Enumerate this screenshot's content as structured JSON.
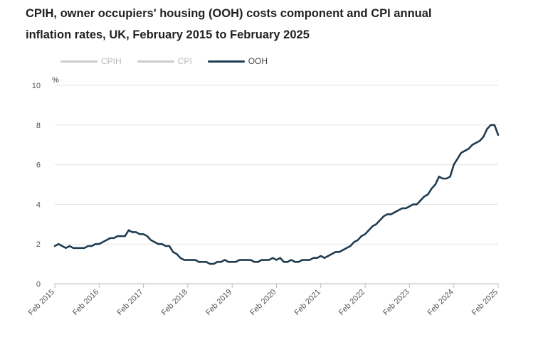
{
  "header": {
    "title_line1": "CPIH, owner occupiers' housing (OOH) costs component and CPI annual",
    "title_line2": "inflation rates, UK, February 2015 to February 2025"
  },
  "legend": [
    {
      "label": "CPIH",
      "color": "#cccccc",
      "active": false
    },
    {
      "label": "CPI",
      "color": "#cccccc",
      "active": false
    },
    {
      "label": "OOH",
      "color": "#1f3c50",
      "active": true
    }
  ],
  "chart_data": {
    "type": "line",
    "title": "CPIH, owner occupiers' housing (OOH) costs component and CPI annual inflation rates, UK, February 2015 to February 2025",
    "ylabel": "%",
    "xlabel": "",
    "ylim": [
      0,
      10
    ],
    "yticks": [
      0,
      2,
      4,
      6,
      8,
      10
    ],
    "grid": true,
    "legend_position": "top-left",
    "xtick_labels": [
      "Feb 2015",
      "Feb 2016",
      "Feb 2017",
      "Feb 2018",
      "Feb 2019",
      "Feb 2020",
      "Feb 2021",
      "Feb 2022",
      "Feb 2023",
      "Feb 2024",
      "Feb 2025"
    ],
    "xtick_month_index": [
      0,
      12,
      24,
      36,
      48,
      60,
      72,
      84,
      96,
      108,
      120
    ],
    "series": [
      {
        "name": "OOH",
        "color": "#1f3c50",
        "start": "Feb 2015",
        "frequency": "monthly",
        "values": [
          1.9,
          2.0,
          1.9,
          1.8,
          1.9,
          1.8,
          1.8,
          1.8,
          1.8,
          1.9,
          1.9,
          2.0,
          2.0,
          2.1,
          2.2,
          2.3,
          2.3,
          2.4,
          2.4,
          2.4,
          2.7,
          2.6,
          2.6,
          2.5,
          2.5,
          2.4,
          2.2,
          2.1,
          2.0,
          2.0,
          1.9,
          1.9,
          1.6,
          1.5,
          1.3,
          1.2,
          1.2,
          1.2,
          1.2,
          1.1,
          1.1,
          1.1,
          1.0,
          1.0,
          1.1,
          1.1,
          1.2,
          1.1,
          1.1,
          1.1,
          1.2,
          1.2,
          1.2,
          1.2,
          1.1,
          1.1,
          1.2,
          1.2,
          1.2,
          1.3,
          1.2,
          1.3,
          1.1,
          1.1,
          1.2,
          1.1,
          1.1,
          1.2,
          1.2,
          1.2,
          1.3,
          1.3,
          1.4,
          1.3,
          1.4,
          1.5,
          1.6,
          1.6,
          1.7,
          1.8,
          1.9,
          2.1,
          2.2,
          2.4,
          2.5,
          2.7,
          2.9,
          3.0,
          3.2,
          3.4,
          3.5,
          3.5,
          3.6,
          3.7,
          3.8,
          3.8,
          3.9,
          4.0,
          4.0,
          4.2,
          4.4,
          4.5,
          4.8,
          5.0,
          5.4,
          5.3,
          5.3,
          5.4,
          6.0,
          6.3,
          6.6,
          6.7,
          6.8,
          7.0,
          7.1,
          7.2,
          7.4,
          7.8,
          8.0,
          8.0,
          7.5
        ]
      }
    ]
  }
}
